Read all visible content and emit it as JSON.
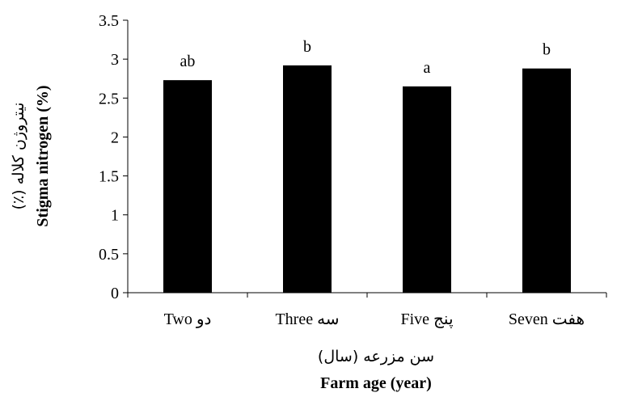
{
  "chart_data": {
    "type": "bar",
    "categories": [
      "Two دو",
      "Three سه",
      "Five پنج",
      "Seven هفت"
    ],
    "values": [
      2.73,
      2.92,
      2.65,
      2.88
    ],
    "data_labels": [
      "ab",
      "b",
      "a",
      "b"
    ],
    "title": "",
    "xlabel": "Farm age (year)",
    "xlabel_fa": "سن مزرعه (سال)",
    "ylabel": "Stigma nitrogen (%)",
    "ylabel_fa": "نیتروژن کلاله (٪)",
    "ylim": [
      0,
      3.5
    ],
    "yticks": [
      "0",
      "0.5",
      "1",
      "1.5",
      "2",
      "2.5",
      "3",
      "3.5"
    ],
    "ytick_values": [
      0,
      0.5,
      1,
      1.5,
      2,
      2.5,
      3,
      3.5
    ],
    "grid": false,
    "bar_color": "#000000"
  }
}
